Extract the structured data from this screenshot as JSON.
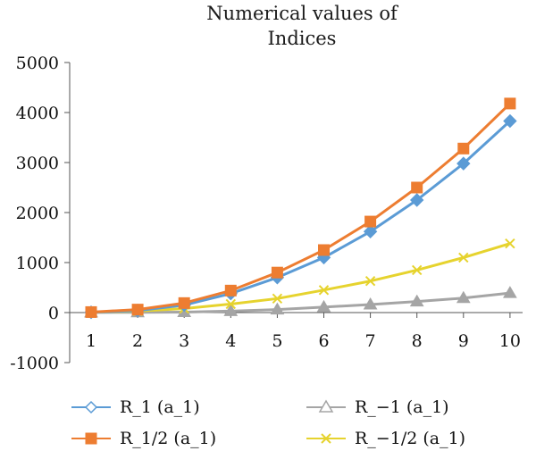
{
  "chart_data": {
    "type": "line",
    "title": [
      "Numerical values of",
      "Indices"
    ],
    "xlabel": "",
    "ylabel": "",
    "x": [
      1,
      2,
      3,
      4,
      5,
      6,
      7,
      8,
      9,
      10
    ],
    "ylim": [
      -1000,
      5000
    ],
    "yticks": [
      -1000,
      0,
      1000,
      2000,
      3000,
      4000,
      5000
    ],
    "ytick_labels": [
      "-1000",
      "0",
      "1000",
      "2000",
      "3000",
      "4000",
      "5000"
    ],
    "xtick_labels": [
      "1",
      "2",
      "3",
      "4",
      "5",
      "6",
      "7",
      "8",
      "9",
      "10"
    ],
    "grid": false,
    "legend_position": "bottom",
    "series": [
      {
        "name": "R_1 (a_1)",
        "color": "#5b9bd5",
        "marker": "diamond",
        "values": [
          5,
          40,
          150,
          380,
          700,
          1100,
          1620,
          2250,
          2980,
          3830
        ]
      },
      {
        "name": "R_1/2 (a_1)",
        "color": "#ed7d31",
        "marker": "square",
        "values": [
          10,
          60,
          190,
          440,
          800,
          1250,
          1820,
          2500,
          3280,
          4180
        ]
      },
      {
        "name": "R_−1 (a_1)",
        "color": "#a5a5a5",
        "marker": "triangle",
        "values": [
          2,
          5,
          10,
          30,
          60,
          110,
          160,
          220,
          290,
          390
        ]
      },
      {
        "name": "R_−1/2 (a_1)",
        "color": "#e6d32e",
        "marker": "x",
        "values": [
          5,
          30,
          80,
          170,
          280,
          450,
          630,
          850,
          1100,
          1380
        ]
      }
    ]
  }
}
